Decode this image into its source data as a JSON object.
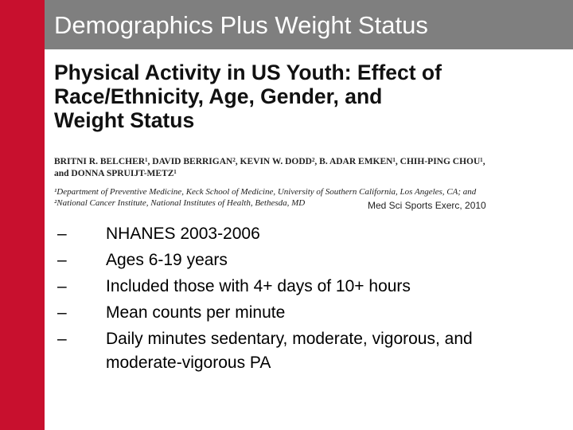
{
  "header": {
    "title": "Demographics Plus Weight Status"
  },
  "paper": {
    "title_lines": [
      "Physical Activity in US Youth: Effect of",
      "Race/Ethnicity, Age, Gender, and",
      "Weight Status"
    ],
    "authors": [
      "BRITNI R. BELCHER¹, DAVID BERRIGAN², KEVIN W. DODD², B. ADAR EMKEN¹, CHIH-PING CHOU¹,",
      "and DONNA SPRUIJT-METZ¹"
    ],
    "affiliations": [
      "¹Department of Preventive Medicine, Keck School of Medicine, University of Southern California, Los Angeles, CA; and",
      "²National Cancer Institute, National Institutes of Health, Bethesda, MD"
    ],
    "citation": "Med Sci Sports Exerc, 2010"
  },
  "bullets": {
    "marker": "–",
    "items": [
      "NHANES 2003-2006",
      "Ages 6-19 years",
      "Included those with 4+ days of 10+ hours",
      "Mean counts per minute",
      "Daily minutes sedentary, moderate, vigorous, and moderate-vigorous PA"
    ]
  }
}
